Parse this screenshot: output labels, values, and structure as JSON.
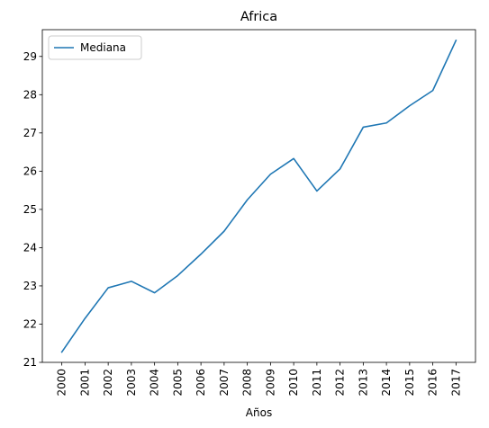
{
  "chart_data": {
    "type": "line",
    "title": "Africa",
    "xlabel": "Años",
    "ylabel": "",
    "x": [
      "2000",
      "2001",
      "2002",
      "2003",
      "2004",
      "2005",
      "2006",
      "2007",
      "2008",
      "2009",
      "2010",
      "2011",
      "2012",
      "2013",
      "2014",
      "2015",
      "2016",
      "2017"
    ],
    "series": [
      {
        "name": "Mediana",
        "color": "#1f77b4",
        "values": [
          21.27,
          22.15,
          22.95,
          23.12,
          22.82,
          23.27,
          23.83,
          24.43,
          25.25,
          25.92,
          26.33,
          25.48,
          26.06,
          27.15,
          27.26,
          27.71,
          28.11,
          29.42
        ]
      }
    ],
    "ylim": [
      21.0,
      29.7
    ],
    "yticks": [
      21,
      22,
      23,
      24,
      25,
      26,
      27,
      28,
      29
    ],
    "grid": false,
    "legend_position": "upper-left"
  }
}
